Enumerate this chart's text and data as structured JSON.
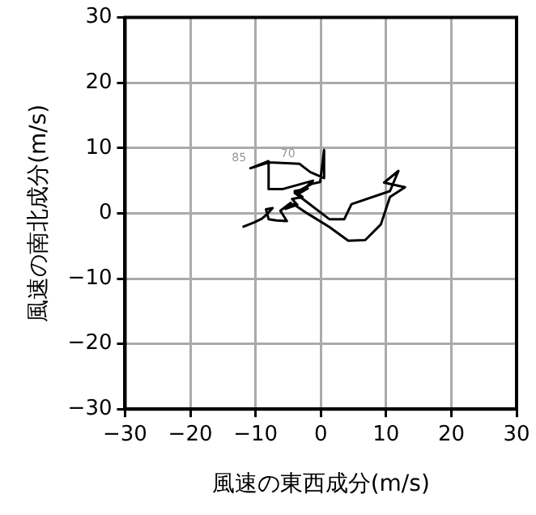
{
  "chart_data": {
    "type": "line",
    "xlabel": "風速の東西成分(m/s)",
    "ylabel": "風速の南北成分(m/s)",
    "x": [
      -12,
      -10.2,
      -9,
      -8.2,
      -7.4,
      -8.4,
      -8,
      -6.8,
      -5.2,
      -6.2,
      -4.6,
      -5.4,
      -3.6,
      -4.4,
      -2.8,
      -4,
      -2,
      -3.4,
      -1.2,
      -5.9,
      -8,
      -8,
      -10.8,
      -8,
      -3.3,
      -1.6,
      0.5,
      0.5,
      -0.1,
      -1.4,
      -4,
      -2.5,
      1.3,
      3.6,
      4.7,
      10.6,
      11.9,
      9.7,
      12.9,
      10.6,
      9.2,
      6.8,
      4.2,
      1.3,
      -2.1,
      -4.2,
      -5.5
    ],
    "values": [
      -2.1,
      -1.4,
      -0.8,
      -0.1,
      0.8,
      0.6,
      -0.9,
      -1.1,
      -1.2,
      0.4,
      1.6,
      0.7,
      1.3,
      2.2,
      2.5,
      3.4,
      3.8,
      3.0,
      5.0,
      3.7,
      3.7,
      8,
      6.9,
      7.8,
      7.6,
      6.3,
      5.4,
      9.7,
      4.8,
      4.5,
      3.1,
      2.0,
      -0.9,
      -0.9,
      1.4,
      3.4,
      6.5,
      4.7,
      4.0,
      2.5,
      -1.7,
      -4.1,
      -4.2,
      -2.1,
      0.0,
      1.4,
      0.6
    ],
    "color": "#000000",
    "marker": "none",
    "line_style": "solid",
    "xlim": [
      -30,
      30
    ],
    "ylim": [
      -30,
      30
    ],
    "xticks": [
      -30,
      -20,
      -10,
      0,
      10,
      20,
      30
    ],
    "yticks": [
      -30,
      -20,
      -10,
      0,
      10,
      20,
      30
    ],
    "grid": true,
    "legend": false,
    "annotations": [
      {
        "text": "85",
        "x": -10.8,
        "y": 6.9
      },
      {
        "text": "70",
        "x": -3.3,
        "y": 7.6
      }
    ]
  }
}
